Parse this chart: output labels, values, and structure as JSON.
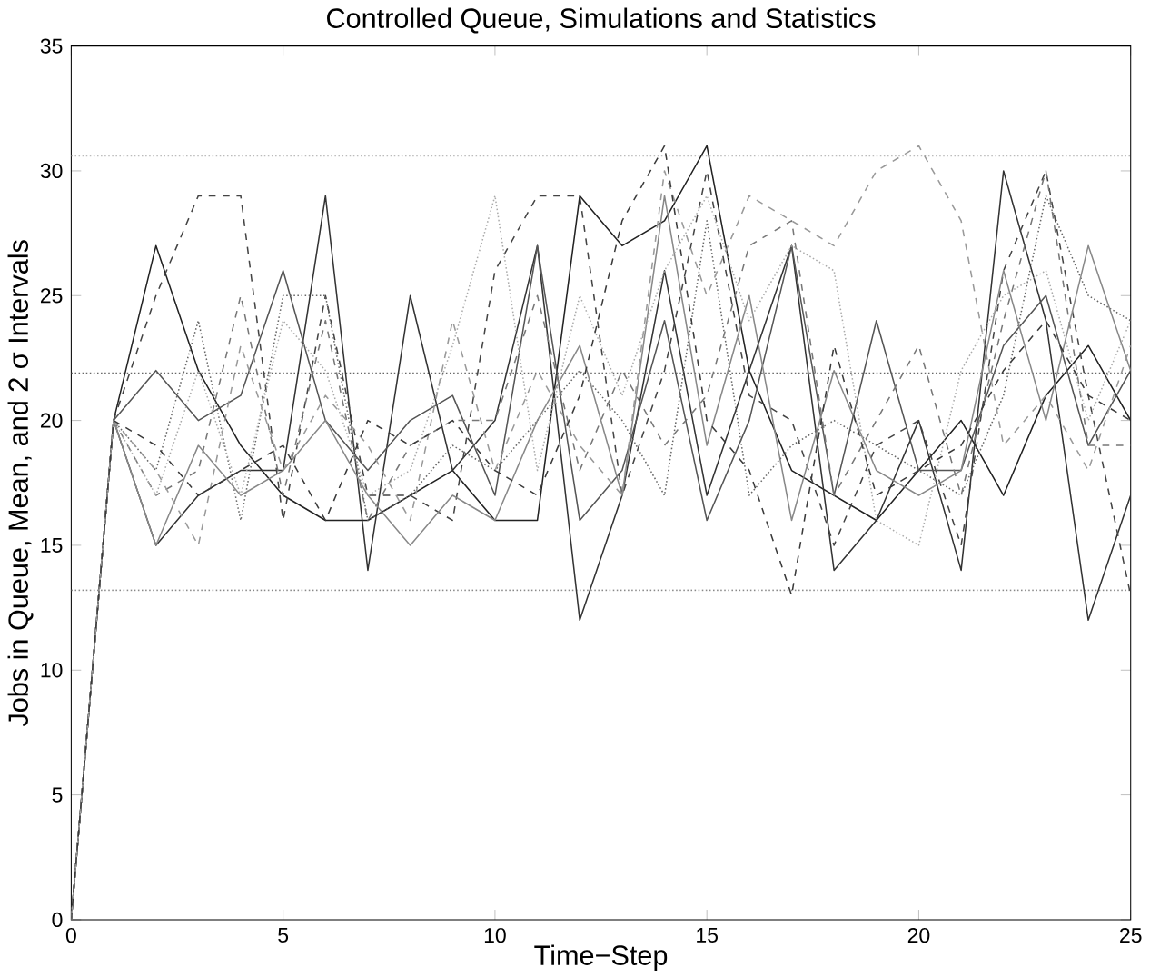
{
  "chart_data": {
    "type": "line",
    "title": "Controlled Queue, Simulations and Statistics",
    "xlabel": "Time−Step",
    "ylabel": "Jobs in Queue, Mean, and 2 σ Intervals",
    "x": [
      0,
      1,
      2,
      3,
      4,
      5,
      6,
      7,
      8,
      9,
      10,
      11,
      12,
      13,
      14,
      15,
      16,
      17,
      18,
      19,
      20,
      21,
      22,
      23,
      24,
      25
    ],
    "xlim": [
      0,
      25
    ],
    "ylim": [
      0,
      35
    ],
    "xticks": [
      0,
      5,
      10,
      15,
      20,
      25
    ],
    "yticks": [
      0,
      5,
      10,
      15,
      20,
      25,
      30,
      35
    ],
    "grid": false,
    "series": [
      {
        "color": "#222222",
        "line_style": "solid",
        "values": [
          0,
          20,
          27,
          22,
          19,
          17,
          16,
          16,
          17,
          18,
          16,
          16,
          29,
          27,
          28,
          31,
          22,
          18,
          17,
          16,
          18,
          20,
          17,
          21,
          23,
          20
        ]
      },
      {
        "color": "#333333",
        "line_style": "solid",
        "values": [
          0,
          20,
          15,
          17,
          18,
          18,
          29,
          14,
          25,
          18,
          20,
          27,
          12,
          17,
          26,
          17,
          22,
          27,
          14,
          16,
          20,
          14,
          30,
          24,
          12,
          17
        ]
      },
      {
        "color": "#444444",
        "line_style": "dashed",
        "values": [
          0,
          20,
          25,
          29,
          29,
          16,
          25,
          17,
          17,
          16,
          26,
          29,
          29,
          17,
          22,
          30,
          21,
          20,
          15,
          19,
          20,
          15,
          26,
          30,
          21,
          13
        ]
      },
      {
        "color": "#555555",
        "line_style": "solid",
        "values": [
          0,
          20,
          22,
          20,
          21,
          26,
          20,
          18,
          20,
          21,
          17,
          27,
          16,
          18,
          24,
          16,
          20,
          27,
          17,
          24,
          18,
          18,
          23,
          25,
          19,
          22
        ]
      },
      {
        "color": "#666666",
        "line_style": "dotted",
        "values": [
          0,
          20,
          18,
          24,
          16,
          25,
          25,
          16,
          17,
          19,
          18,
          20,
          22,
          20,
          17,
          28,
          17,
          19,
          20,
          19,
          18,
          17,
          21,
          29,
          25,
          24
        ]
      },
      {
        "color": "#777777",
        "line_style": "dashed",
        "values": [
          0,
          20,
          17,
          18,
          25,
          17,
          24,
          16,
          19,
          20,
          20,
          25,
          18,
          22,
          19,
          21,
          27,
          28,
          17,
          20,
          23,
          17,
          24,
          30,
          19,
          19
        ]
      },
      {
        "color": "#888888",
        "line_style": "solid",
        "values": [
          0,
          20,
          15,
          19,
          17,
          18,
          20,
          17,
          15,
          17,
          16,
          20,
          23,
          17,
          29,
          19,
          25,
          16,
          22,
          18,
          17,
          18,
          26,
          20,
          27,
          22
        ]
      },
      {
        "color": "#999999",
        "line_style": "dashed",
        "values": [
          0,
          20,
          18,
          15,
          23,
          18,
          21,
          19,
          16,
          24,
          18,
          22,
          19,
          17,
          30,
          25,
          29,
          28,
          27,
          30,
          31,
          28,
          19,
          21,
          18,
          23
        ]
      },
      {
        "color": "#aaaaaa",
        "line_style": "dotted",
        "values": [
          0,
          20,
          17,
          22,
          17,
          24,
          22,
          17,
          18,
          23,
          29,
          18,
          25,
          21,
          26,
          29,
          24,
          27,
          26,
          16,
          15,
          22,
          25,
          26,
          20,
          24
        ]
      },
      {
        "color": "#3a3a3a",
        "line_style": "dashed",
        "values": [
          0,
          20,
          19,
          17,
          18,
          19,
          16,
          20,
          19,
          20,
          18,
          17,
          21,
          28,
          31,
          20,
          18,
          13,
          23,
          17,
          18,
          19,
          22,
          24,
          21,
          20
        ]
      }
    ],
    "ref_lines": [
      {
        "axis": "y",
        "value": 21.9,
        "color": "#666666",
        "line_style": "dotted"
      },
      {
        "axis": "y",
        "value": 13.2,
        "color": "#888888",
        "line_style": "dotted"
      },
      {
        "axis": "y",
        "value": 30.6,
        "color": "#bbbbbb",
        "line_style": "dotted"
      }
    ]
  }
}
